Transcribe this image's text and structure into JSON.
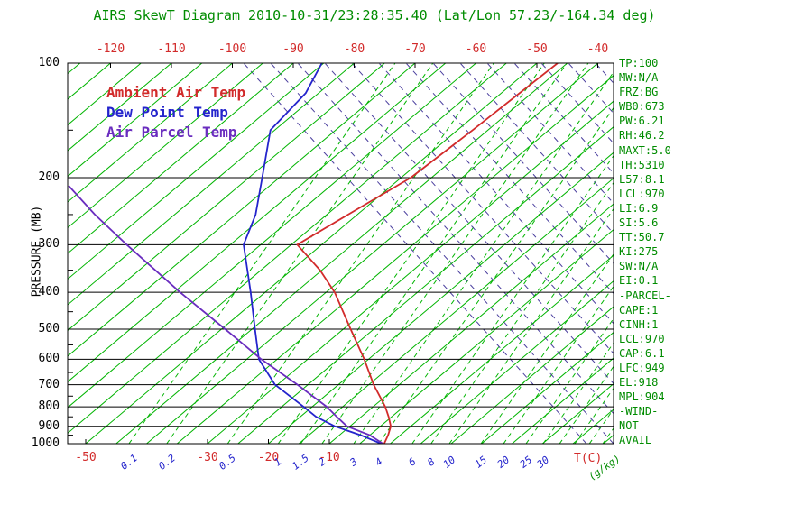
{
  "title": "AIRS SkewT Diagram 2010-10-31/23:28:35.40 (Lat/Lon 57.23/-164.34 deg)",
  "colors": {
    "green_line": "#00b400",
    "green_text": "#008c00",
    "red": "#d22b2b",
    "blue": "#2424cc",
    "purple": "#6a2dbf",
    "purple_dash": "#4a3e9e",
    "axis_black": "#000000"
  },
  "axes": {
    "pressure_label": "PRESSURE (MB)",
    "pressure_ticks": [
      100,
      200,
      300,
      400,
      500,
      600,
      700,
      800,
      900,
      1000
    ],
    "top_temp_ticks": [
      -120,
      -110,
      -100,
      -90,
      -80,
      -70,
      -60,
      -50,
      -40
    ],
    "bottom_temp_ticks": [
      -50,
      -30,
      -20,
      -10
    ],
    "temp_unit_label": "T(C)",
    "mixing_ratio_ticks": [
      "0.1",
      "0.2",
      "0.5",
      "1",
      "1.5",
      "2",
      "3",
      "4",
      "6",
      "8",
      "10",
      "15",
      "20",
      "25",
      "30"
    ],
    "mixing_ratio_unit_label": "(g/kg)"
  },
  "legend": [
    {
      "label": "Ambient Air Temp",
      "color": "#d22b2b"
    },
    {
      "label": "Dew Point Temp",
      "color": "#2424cc"
    },
    {
      "label": "Air Parcel Temp",
      "color": "#6a2dbf"
    }
  ],
  "stats_panel": [
    "TP:100",
    "MW:N/A",
    "FRZ:BG",
    "WB0:673",
    "PW:6.21",
    "RH:46.2",
    "MAXT:5.0",
    "TH:5310",
    "L57:8.1",
    "LCL:970",
    "LI:6.9",
    "SI:5.6",
    "TT:50.7",
    "KI:275",
    "SW:N/A",
    "EI:0.1",
    "-PARCEL-",
    "CAPE:1",
    "CINH:1",
    "LCL:970",
    "CAP:6.1",
    "LFC:949",
    "EL:918",
    "MPL:904",
    "-WIND-",
    "NOT",
    "AVAIL"
  ],
  "chart_data": {
    "type": "line",
    "title": "AIRS SkewT Diagram 2010-10-31/23:28:35.40 (Lat/Lon 57.23/-164.34 deg)",
    "x_axis": {
      "label": "T(C)",
      "skewed": true,
      "top_ticks_range": [
        -120,
        -40
      ],
      "bottom_ticks": [
        -50,
        -30,
        -20,
        -10
      ]
    },
    "y_axis": {
      "label": "PRESSURE (MB)",
      "scale": "log10",
      "range": [
        100,
        1000
      ]
    },
    "grid": {
      "isotherms_c": {
        "min": -125,
        "max": 35,
        "step": 5
      }
    },
    "mixing_ratio_lines_g_per_kg": [
      0.1,
      0.2,
      0.5,
      1,
      1.5,
      2,
      3,
      4,
      6,
      8,
      10,
      15,
      20,
      25,
      30
    ],
    "mixing_ratio_bottom_temps_c": [
      -42.9,
      -36.7,
      -26.7,
      -18.4,
      -14.7,
      -11.2,
      -6.0,
      -1.9,
      3.6,
      6.7,
      9.7,
      14.9,
      18.6,
      22.3,
      25.1
    ],
    "legend_position": "inside-top-left",
    "series": [
      {
        "name": "Ambient Air Temp",
        "color": "#d22b2b",
        "points_p_mb_t_c": [
          [
            1000,
            -1.0
          ],
          [
            950,
            -2.0
          ],
          [
            900,
            -3.3
          ],
          [
            850,
            -5.5
          ],
          [
            800,
            -8.0
          ],
          [
            700,
            -14.2
          ],
          [
            600,
            -20.7
          ],
          [
            500,
            -28.8
          ],
          [
            400,
            -38.6
          ],
          [
            350,
            -45.3
          ],
          [
            300,
            -54.0
          ],
          [
            250,
            -51.5
          ],
          [
            200,
            -48.4
          ],
          [
            150,
            -47.5
          ],
          [
            100,
            -46.6
          ]
        ]
      },
      {
        "name": "Dew Point Temp",
        "color": "#2424cc",
        "points_p_mb_t_c": [
          [
            1000,
            -1.5
          ],
          [
            950,
            -6.5
          ],
          [
            900,
            -12.5
          ],
          [
            850,
            -17.4
          ],
          [
            800,
            -21.4
          ],
          [
            700,
            -30.4
          ],
          [
            600,
            -38.0
          ],
          [
            500,
            -44.5
          ],
          [
            400,
            -52.4
          ],
          [
            300,
            -62.8
          ],
          [
            250,
            -66.7
          ],
          [
            200,
            -72.8
          ],
          [
            150,
            -80.7
          ],
          [
            120,
            -82.1
          ],
          [
            100,
            -85.3
          ]
        ]
      },
      {
        "name": "Air Parcel Temp",
        "color": "#6a2dbf",
        "points_p_mb_t_c": [
          [
            1000,
            -1.2
          ],
          [
            950,
            -5.0
          ],
          [
            900,
            -10.5
          ],
          [
            850,
            -14.0
          ],
          [
            800,
            -17.6
          ],
          [
            700,
            -26.7
          ],
          [
            600,
            -37.6
          ],
          [
            500,
            -49.4
          ],
          [
            400,
            -64.0
          ],
          [
            300,
            -82.0
          ],
          [
            250,
            -93.1
          ],
          [
            210,
            -103.0
          ]
        ]
      }
    ]
  }
}
